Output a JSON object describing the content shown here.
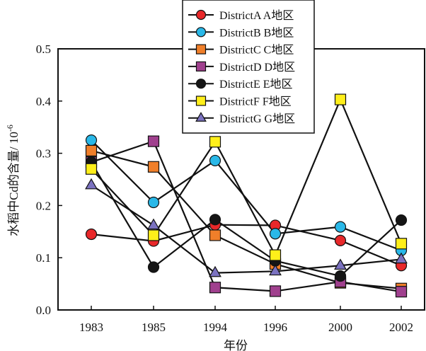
{
  "chart_data": {
    "type": "line",
    "title": "",
    "xlabel": "年份",
    "ylabel": "水稻中Cd的含量/ 10",
    "ylabel_superscript": "-6",
    "categories": [
      "1983",
      "1985",
      "1994",
      "1996",
      "2000",
      "2002"
    ],
    "ylim": [
      0.0,
      0.5
    ],
    "yticks": [
      "0.0",
      "0.1",
      "0.2",
      "0.3",
      "0.4",
      "0.5"
    ],
    "grid": false,
    "legend_position": "top-center",
    "series": [
      {
        "name": "DistrictA  A地区",
        "marker": "circle",
        "color": "#e8282a",
        "values": [
          0.145,
          0.132,
          0.163,
          0.162,
          0.133,
          0.085
        ]
      },
      {
        "name": "DistrictB  B地区",
        "marker": "circle",
        "color": "#29b8e8",
        "values": [
          0.325,
          0.206,
          0.286,
          0.146,
          0.159,
          0.114
        ]
      },
      {
        "name": "DistrictC  C地区",
        "marker": "square",
        "color": "#f07f2a",
        "values": [
          0.305,
          0.274,
          0.143,
          0.088,
          0.052,
          0.041
        ]
      },
      {
        "name": "DistrictD  D地区",
        "marker": "square",
        "color": "#a0408e",
        "values": [
          0.283,
          0.323,
          0.043,
          0.036,
          0.054,
          0.035
        ]
      },
      {
        "name": "DistrictE  E地区",
        "marker": "circle",
        "color": "#151515",
        "values": [
          0.283,
          0.082,
          0.173,
          0.094,
          0.065,
          0.172
        ]
      },
      {
        "name": "DistrictF  F地区",
        "marker": "square",
        "color": "#ffef1a",
        "values": [
          0.27,
          0.143,
          0.322,
          0.105,
          0.403,
          0.127
        ]
      },
      {
        "name": "DistrictG  G地区",
        "marker": "triangle",
        "color": "#7b72c0",
        "values": [
          0.239,
          0.162,
          0.071,
          0.074,
          0.085,
          0.097
        ]
      }
    ]
  }
}
